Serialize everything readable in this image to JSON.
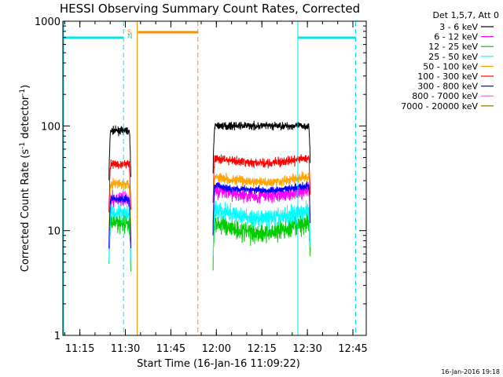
{
  "chart_data": {
    "type": "line",
    "title": "HESSI Observing Summary Count Rates, Corrected",
    "xlabel": "Start Time (16-Jan-16 11:09:22)",
    "ylabel": "Corrected Count Rate (s",
    "ylabel_sup1": "-1",
    "ylabel_mid": " detector",
    "ylabel_sup2": "-1",
    "ylabel_end": ")",
    "y_scale": "log",
    "ylim": [
      1,
      1000
    ],
    "xlim_minutes": [
      0,
      100
    ],
    "x_ticks": [
      {
        "label": "11:15",
        "min": 5.6
      },
      {
        "label": "11:30",
        "min": 20.6
      },
      {
        "label": "11:45",
        "min": 35.6
      },
      {
        "label": "12:00",
        "min": 50.6
      },
      {
        "label": "12:15",
        "min": 65.6
      },
      {
        "label": "12:30",
        "min": 80.6
      },
      {
        "label": "12:45",
        "min": 95.6
      }
    ],
    "y_ticks": [
      {
        "label": "1",
        "value": 1
      },
      {
        "label": "10",
        "value": 10
      },
      {
        "label": "100",
        "value": 100
      },
      {
        "label": "1000",
        "value": 1000
      }
    ],
    "legend_header": "Det 1,5,7, Att 0",
    "legend_position": "right",
    "series": [
      {
        "name": "3 - 6 keV",
        "color": "#000000",
        "seg1": 90,
        "seg2": 100,
        "seg2_dip": 0.0,
        "noise": 0.05
      },
      {
        "name": "6 - 12 keV",
        "color": "#ff00ff",
        "seg1": 20,
        "seg2": 25,
        "seg2_dip": 0.15,
        "noise": 0.1
      },
      {
        "name": "12 - 25 keV",
        "color": "#00cc00",
        "seg1": 12,
        "seg2": 12,
        "seg2_dip": 0.2,
        "noise": 0.14
      },
      {
        "name": "25 - 50 keV",
        "color": "#00ffff",
        "seg1": 15,
        "seg2": 16,
        "seg2_dip": 0.18,
        "noise": 0.12
      },
      {
        "name": "50 - 100 keV",
        "color": "#ffa500",
        "seg1": 28,
        "seg2": 33,
        "seg2_dip": 0.12,
        "noise": 0.07
      },
      {
        "name": "100 - 300 keV",
        "color": "#ff0000",
        "seg1": 43,
        "seg2": 50,
        "seg2_dip": 0.12,
        "noise": 0.06
      },
      {
        "name": "300 - 800 keV",
        "color": "#0000ff",
        "seg1": 20,
        "seg2": 27,
        "seg2_dip": 0.1,
        "noise": 0.05
      },
      {
        "name": "800 - 7000 keV",
        "color": "#ff66cc",
        "seg1": 0,
        "seg2": 0,
        "seg2_dip": 0,
        "noise": 0
      },
      {
        "name": "7000 - 20000 keV",
        "color": "#8b7500",
        "seg1": 0,
        "seg2": 0,
        "seg2_dip": 0,
        "noise": 0
      }
    ],
    "data_intervals_minutes": [
      [
        15.2,
        22.4
      ],
      [
        49.5,
        81.6
      ]
    ],
    "annotations": [
      {
        "label": "N",
        "color": "#00e5ee",
        "start": 20.0,
        "end": 96.5
      },
      {
        "label": "S",
        "color": "#ff8c00",
        "start": 24.5,
        "end": 44.5
      }
    ],
    "timestamp": "16-Jan-2016 19:18"
  }
}
